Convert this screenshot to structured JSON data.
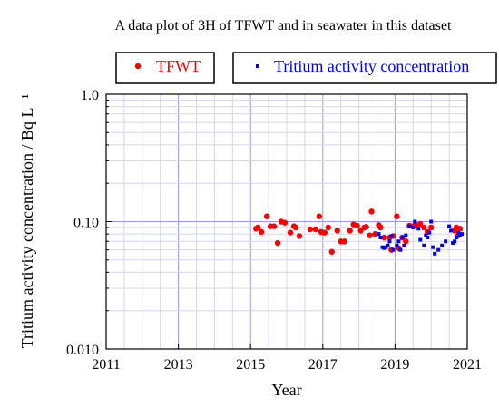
{
  "chart_data": {
    "type": "scatter",
    "title": "A data plot of 3H of TFWT and in seawater in this dataset",
    "xlabel": "Year",
    "ylabel": "Tritium activity concentration / Bq L⁻¹",
    "x_scale": "linear",
    "y_scale": "log",
    "xlim": [
      2011,
      2021
    ],
    "ylim": [
      0.01,
      1.0
    ],
    "x_ticks": [
      2011,
      2013,
      2015,
      2017,
      2019,
      2021
    ],
    "x_tick_labels": [
      "2011",
      "2013",
      "2015",
      "2017",
      "2019",
      "2021"
    ],
    "y_ticks": [
      0.01,
      0.1,
      1.0
    ],
    "y_tick_labels": [
      "0.010",
      "0.10",
      "1.0"
    ],
    "grid": true,
    "legend_position": "top",
    "series": [
      {
        "name": "TFWT",
        "color": "#ff0000",
        "marker": "circle",
        "points": [
          [
            2015.15,
            0.088
          ],
          [
            2015.2,
            0.09
          ],
          [
            2015.3,
            0.083
          ],
          [
            2015.45,
            0.11
          ],
          [
            2015.55,
            0.092
          ],
          [
            2015.65,
            0.092
          ],
          [
            2015.75,
            0.068
          ],
          [
            2015.85,
            0.1
          ],
          [
            2015.95,
            0.098
          ],
          [
            2016.1,
            0.082
          ],
          [
            2016.2,
            0.092
          ],
          [
            2016.25,
            0.09
          ],
          [
            2016.35,
            0.077
          ],
          [
            2016.65,
            0.087
          ],
          [
            2016.8,
            0.087
          ],
          [
            2016.9,
            0.11
          ],
          [
            2016.95,
            0.083
          ],
          [
            2017.05,
            0.082
          ],
          [
            2017.15,
            0.09
          ],
          [
            2017.25,
            0.058
          ],
          [
            2017.4,
            0.085
          ],
          [
            2017.5,
            0.07
          ],
          [
            2017.6,
            0.07
          ],
          [
            2017.75,
            0.085
          ],
          [
            2017.85,
            0.095
          ],
          [
            2017.95,
            0.093
          ],
          [
            2018.05,
            0.085
          ],
          [
            2018.15,
            0.09
          ],
          [
            2018.2,
            0.091
          ],
          [
            2018.3,
            0.078
          ],
          [
            2018.35,
            0.12
          ],
          [
            2018.45,
            0.08
          ],
          [
            2018.55,
            0.094
          ],
          [
            2018.6,
            0.09
          ],
          [
            2018.7,
            0.075
          ],
          [
            2018.85,
            0.075
          ],
          [
            2018.9,
            0.06
          ],
          [
            2018.95,
            0.077
          ],
          [
            2019.05,
            0.11
          ],
          [
            2019.1,
            0.062
          ],
          [
            2019.2,
            0.075
          ],
          [
            2019.3,
            0.07
          ],
          [
            2019.4,
            0.093
          ],
          [
            2019.5,
            0.092
          ],
          [
            2019.6,
            0.094
          ],
          [
            2019.7,
            0.096
          ],
          [
            2019.8,
            0.09
          ],
          [
            2019.9,
            0.083
          ],
          [
            2020.0,
            0.09
          ],
          [
            2020.65,
            0.085
          ],
          [
            2020.7,
            0.09
          ],
          [
            2020.75,
            0.078
          ],
          [
            2020.8,
            0.088
          ]
        ]
      },
      {
        "name": "Tritium activity concentration",
        "color": "#0000ff",
        "marker": "square",
        "points": [
          [
            2018.55,
            0.08
          ],
          [
            2018.6,
            0.075
          ],
          [
            2018.65,
            0.063
          ],
          [
            2018.7,
            0.062
          ],
          [
            2018.75,
            0.063
          ],
          [
            2018.8,
            0.065
          ],
          [
            2018.85,
            0.07
          ],
          [
            2018.9,
            0.077
          ],
          [
            2018.95,
            0.06
          ],
          [
            2019.05,
            0.065
          ],
          [
            2019.1,
            0.07
          ],
          [
            2019.15,
            0.06
          ],
          [
            2019.2,
            0.075
          ],
          [
            2019.25,
            0.065
          ],
          [
            2019.3,
            0.078
          ],
          [
            2019.4,
            0.092
          ],
          [
            2019.5,
            0.09
          ],
          [
            2019.55,
            0.1
          ],
          [
            2019.65,
            0.088
          ],
          [
            2019.7,
            0.072
          ],
          [
            2019.8,
            0.065
          ],
          [
            2019.85,
            0.078
          ],
          [
            2019.9,
            0.075
          ],
          [
            2019.95,
            0.082
          ],
          [
            2020.0,
            0.1
          ],
          [
            2020.05,
            0.063
          ],
          [
            2020.1,
            0.056
          ],
          [
            2020.2,
            0.06
          ],
          [
            2020.3,
            0.065
          ],
          [
            2020.4,
            0.07
          ],
          [
            2020.5,
            0.092
          ],
          [
            2020.55,
            0.085
          ],
          [
            2020.6,
            0.068
          ],
          [
            2020.65,
            0.07
          ],
          [
            2020.7,
            0.075
          ],
          [
            2020.75,
            0.082
          ],
          [
            2020.8,
            0.078
          ],
          [
            2020.85,
            0.08
          ]
        ]
      }
    ]
  }
}
